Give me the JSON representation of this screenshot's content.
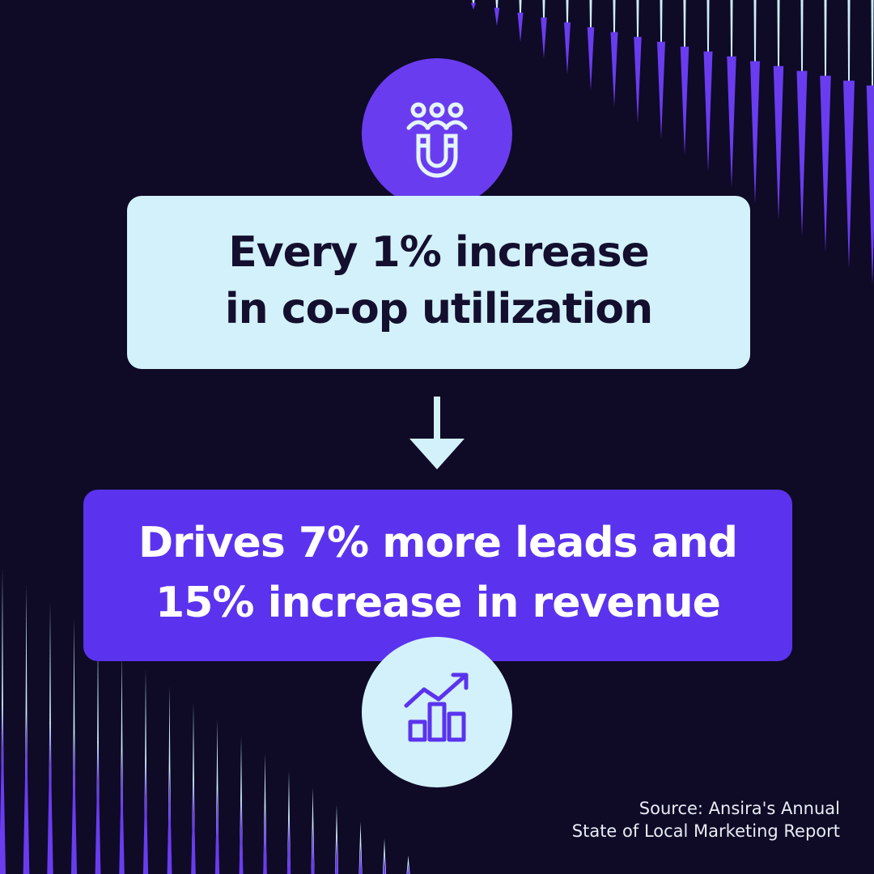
{
  "top_box": {
    "lines": [
      "Every 1% increase",
      "in co-op utilization"
    ]
  },
  "bottom_box": {
    "lines": [
      "Drives 7% more leads and",
      "15% increase in revenue"
    ]
  },
  "source": {
    "lines": [
      "Source: Ansira's Annual",
      "State of Local Marketing Report"
    ]
  }
}
